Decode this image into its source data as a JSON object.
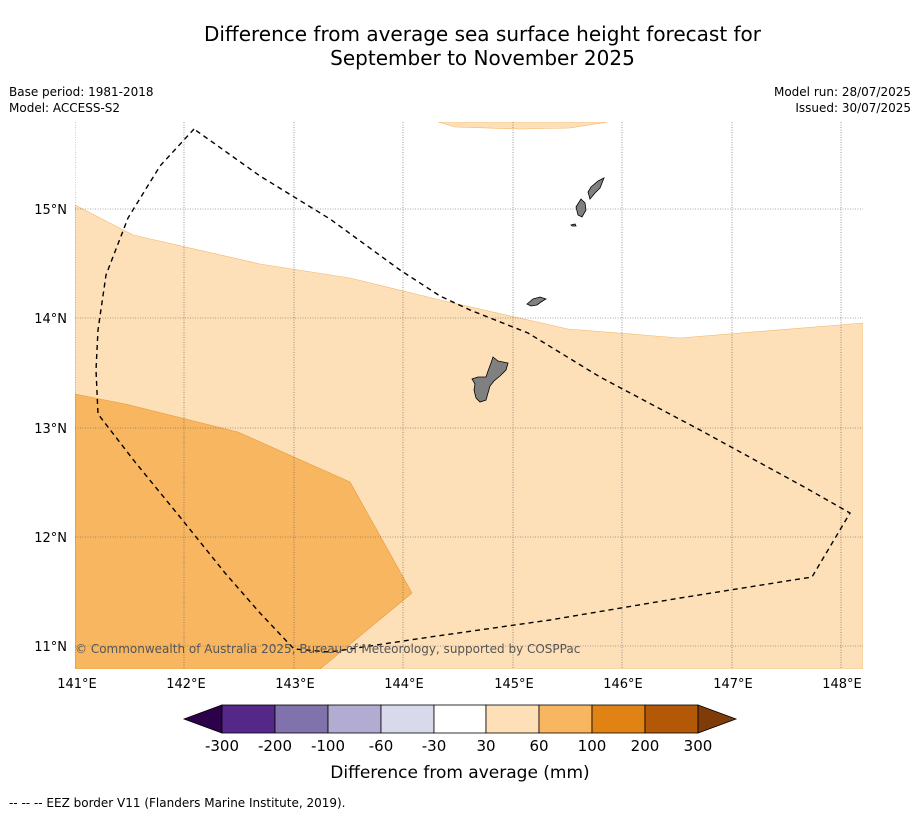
{
  "title": {
    "line1": "Difference from average sea surface height forecast for",
    "line2": "September to November 2025"
  },
  "meta_left": {
    "base_period": "Base period: 1981-2018",
    "model": "Model: ACCESS-S2"
  },
  "meta_right": {
    "model_run": "Model run: 28/07/2025",
    "issued": "Issued: 30/07/2025"
  },
  "map": {
    "lon_range": [
      141,
      148.2
    ],
    "lat_range": [
      10.8,
      15.8
    ],
    "lon_labels": [
      "141°E",
      "142°E",
      "143°E",
      "144°E",
      "145°E",
      "146°E",
      "147°E",
      "148°E"
    ],
    "lat_labels": [
      "15°N",
      "14°N",
      "13°N",
      "12°N",
      "11°N"
    ],
    "copyright": "© Commonwealth of Australia 2025, Bureau of Meteorology, supported by COSPPac",
    "colors": {
      "band_30_60": "#fde0b7",
      "band_60_100": "#f9b660",
      "land": "#808080",
      "eez": "#000000"
    }
  },
  "colorbar": {
    "ticks": [
      "-300",
      "-200",
      "-100",
      "-60",
      "-30",
      "30",
      "60",
      "100",
      "200",
      "300"
    ],
    "colors": [
      "#2d004b",
      "#542788",
      "#8073ac",
      "#b2abd2",
      "#d8daeb",
      "#ffffff",
      "#fde0b7",
      "#f9b660",
      "#e08214",
      "#b35806",
      "#7f3b08"
    ],
    "label": "Difference from average (mm)"
  },
  "legend": {
    "eez_text": "-- -- -- EEZ border V11 (Flanders Marine Institute, 2019)."
  }
}
